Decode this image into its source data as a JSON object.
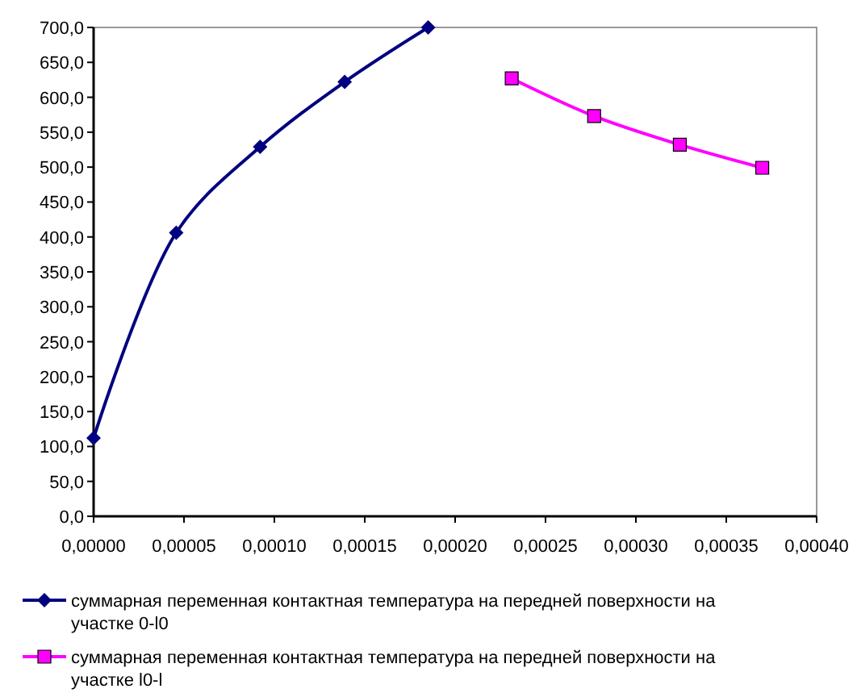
{
  "chart_data": {
    "type": "line",
    "x": [
      0,
      4.57e-05,
      9.21e-05,
      0.0001389,
      0.0001851
    ],
    "xlim": [
      0,
      0.0004
    ],
    "xticks": [
      {
        "value": 0,
        "label": "0,00000"
      },
      {
        "value": 5e-05,
        "label": "0,00005"
      },
      {
        "value": 0.0001,
        "label": "0,00010"
      },
      {
        "value": 0.00015,
        "label": "0,00015"
      },
      {
        "value": 0.0002,
        "label": "0,00020"
      },
      {
        "value": 0.00025,
        "label": "0,00025"
      },
      {
        "value": 0.0003,
        "label": "0,00030"
      },
      {
        "value": 0.00035,
        "label": "0,00035"
      },
      {
        "value": 0.0004,
        "label": "0,00040"
      }
    ],
    "ylim": [
      0,
      700
    ],
    "yticks": [
      {
        "value": 0,
        "label": "0,0"
      },
      {
        "value": 50,
        "label": "50,0"
      },
      {
        "value": 100,
        "label": "100,0"
      },
      {
        "value": 150,
        "label": "150,0"
      },
      {
        "value": 200,
        "label": "200,0"
      },
      {
        "value": 250,
        "label": "250,0"
      },
      {
        "value": 300,
        "label": "300,0"
      },
      {
        "value": 350,
        "label": "350,0"
      },
      {
        "value": 400,
        "label": "400,0"
      },
      {
        "value": 450,
        "label": "450,0"
      },
      {
        "value": 500,
        "label": "500,0"
      },
      {
        "value": 550,
        "label": "550,0"
      },
      {
        "value": 600,
        "label": "600,0"
      },
      {
        "value": 650,
        "label": "650,0"
      },
      {
        "value": 700,
        "label": "700,0"
      }
    ],
    "grid": false,
    "legend": "bottom",
    "series": [
      {
        "name": "суммарная переменная контактная температура на передней поверхности на участке 0-l0",
        "color": "#000080",
        "marker": "diamond",
        "values": [
          112,
          406,
          529,
          622,
          700
        ]
      },
      {
        "name": "суммарная переменная контактная температура на передней поверхности на участке l0-l",
        "color": "#ff00ff",
        "marker": "square",
        "x": [
          0.0002313,
          0.0002769,
          0.0003243,
          0.0003699
        ],
        "values": [
          627,
          573,
          532,
          499
        ]
      }
    ]
  }
}
